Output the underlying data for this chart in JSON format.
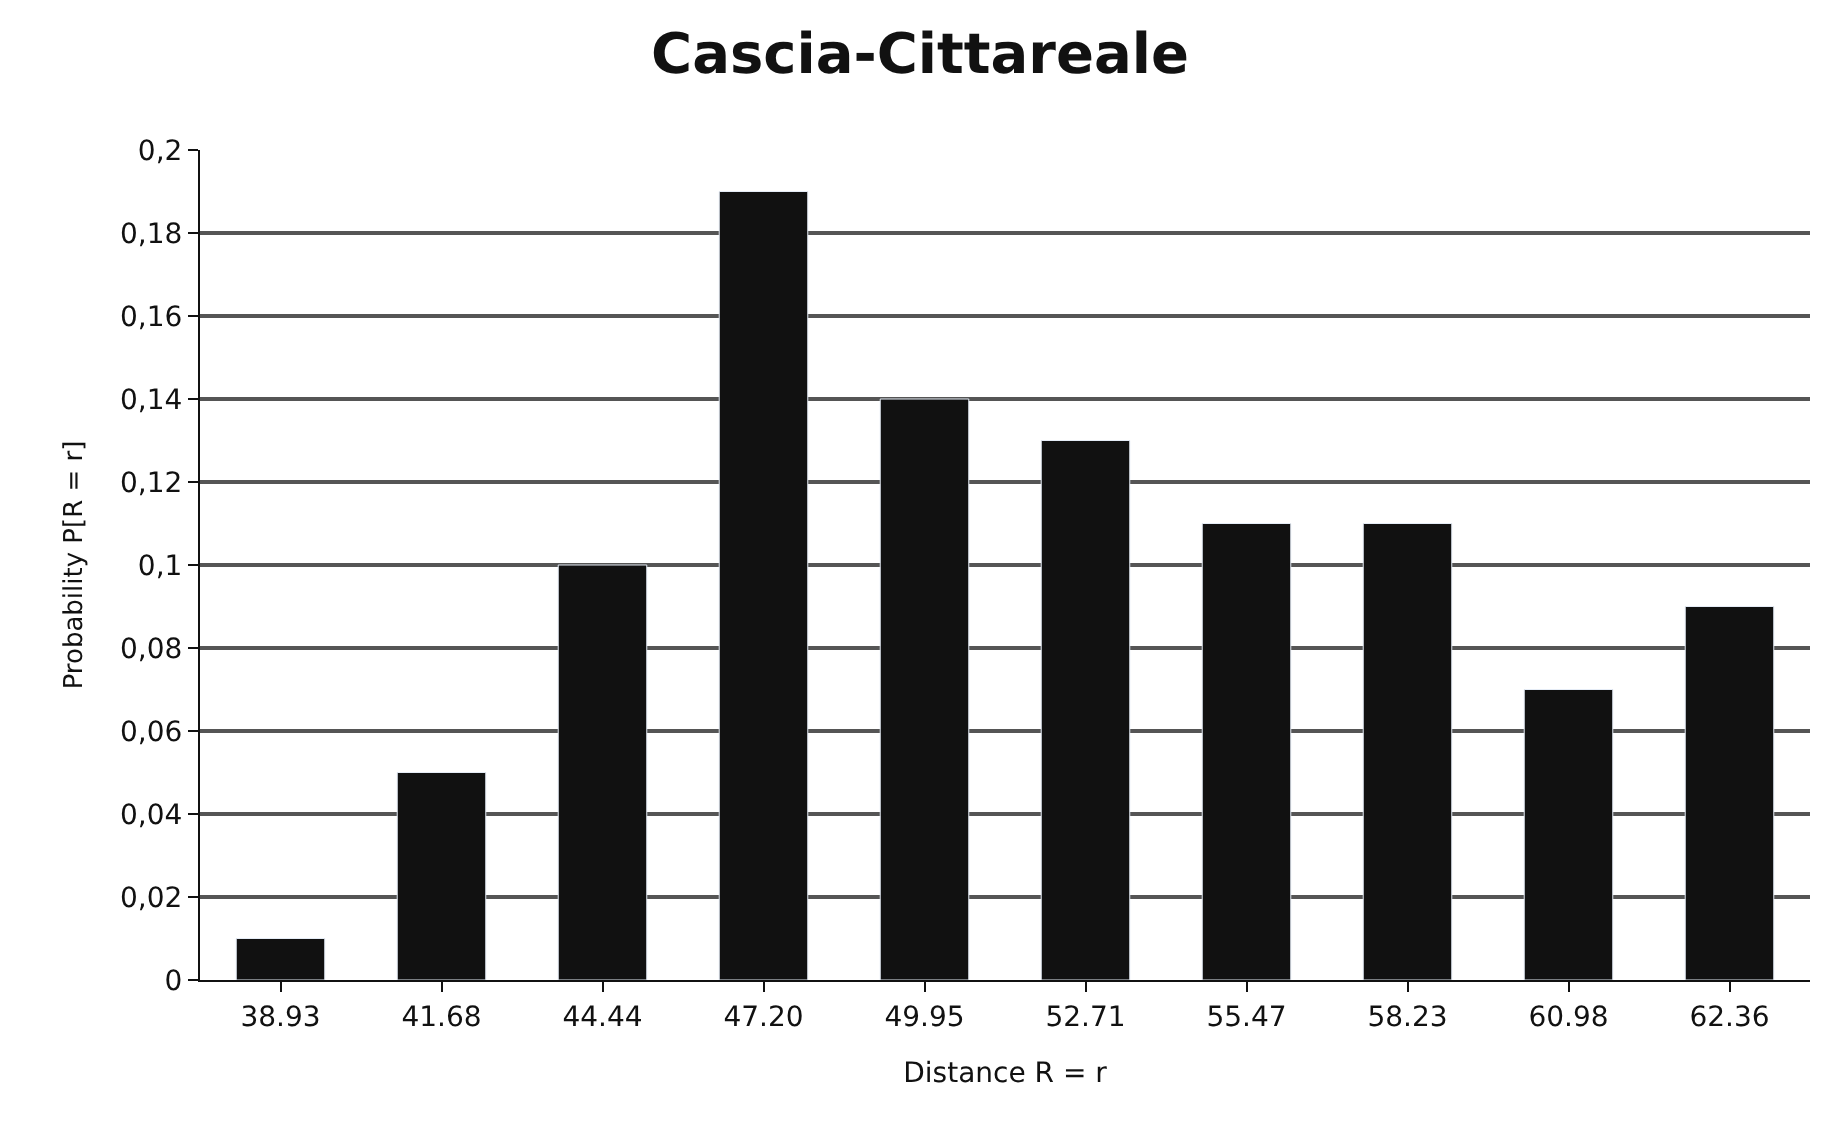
{
  "chart_data": {
    "type": "bar",
    "title": "Cascia-Cittareale",
    "xlabel": "Distance R = r",
    "ylabel": "Probability P[R = r]",
    "categories": [
      "38.93",
      "41.68",
      "44.44",
      "47.20",
      "49.95",
      "52.71",
      "55.47",
      "58.23",
      "60.98",
      "62.36"
    ],
    "values": [
      0.01,
      0.05,
      0.1,
      0.19,
      0.14,
      0.13,
      0.11,
      0.11,
      0.07,
      0.09
    ],
    "color": "#111111",
    "ylim": [
      0,
      0.2
    ],
    "yticks": [
      0,
      {
        "value": 0.02,
        "label": "0,02"
      },
      {
        "value": 0.04,
        "label": "0,04"
      },
      {
        "value": 0.06,
        "label": "0,06"
      },
      {
        "value": 0.08,
        "label": "0,08"
      },
      {
        "value": 0.1,
        "label": "0,1"
      },
      {
        "value": 0.12,
        "label": "0,12"
      },
      {
        "value": 0.14,
        "label": "0,14"
      },
      {
        "value": 0.16,
        "label": "0,16"
      },
      {
        "value": 0.18,
        "label": "0,18"
      },
      {
        "value": 0.2,
        "label": "0,2"
      }
    ],
    "grid": "y",
    "legend": false
  }
}
